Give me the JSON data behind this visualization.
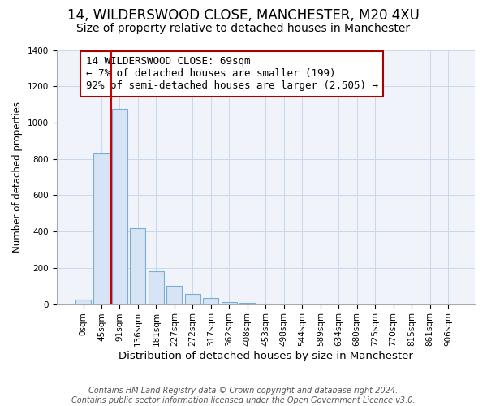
{
  "title": "14, WILDERSWOOD CLOSE, MANCHESTER, M20 4XU",
  "subtitle": "Size of property relative to detached houses in Manchester",
  "xlabel": "Distribution of detached houses by size in Manchester",
  "ylabel": "Number of detached properties",
  "bar_labels": [
    "0sqm",
    "45sqm",
    "91sqm",
    "136sqm",
    "181sqm",
    "227sqm",
    "272sqm",
    "317sqm",
    "362sqm",
    "408sqm",
    "453sqm",
    "498sqm",
    "544sqm",
    "589sqm",
    "634sqm",
    "680sqm",
    "725sqm",
    "770sqm",
    "815sqm",
    "861sqm",
    "906sqm"
  ],
  "bar_values": [
    25,
    830,
    1075,
    420,
    180,
    100,
    58,
    35,
    10,
    5,
    2,
    0,
    0,
    0,
    0,
    0,
    0,
    0,
    0,
    0,
    0
  ],
  "bar_facecolor": "#d6e4f5",
  "bar_edgecolor": "#7aadd4",
  "vline_x": 1.55,
  "vline_color": "#cc0000",
  "ylim": [
    0,
    1400
  ],
  "yticks": [
    0,
    200,
    400,
    600,
    800,
    1000,
    1200,
    1400
  ],
  "annotation_text": "14 WILDERSWOOD CLOSE: 69sqm\n← 7% of detached houses are smaller (199)\n92% of semi-detached houses are larger (2,505) →",
  "annotation_box_edgecolor": "#aa0000",
  "footnote": "Contains HM Land Registry data © Crown copyright and database right 2024.\nContains public sector information licensed under the Open Government Licence v3.0.",
  "title_fontsize": 12,
  "subtitle_fontsize": 10,
  "xlabel_fontsize": 9.5,
  "ylabel_fontsize": 8.5,
  "footnote_fontsize": 7,
  "annotation_fontsize": 9,
  "tick_fontsize": 7.5
}
